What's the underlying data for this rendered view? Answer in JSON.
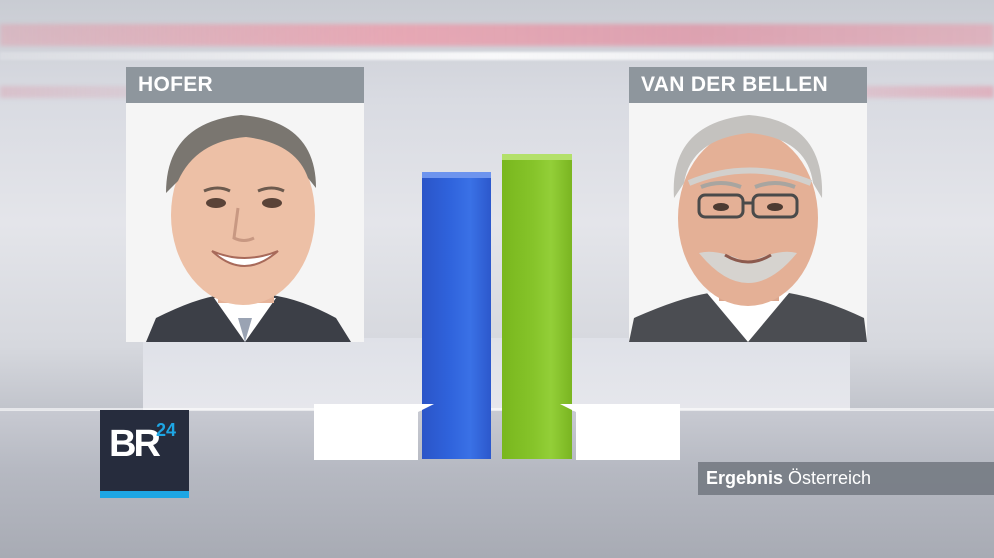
{
  "candidates": [
    {
      "name": "HOFER",
      "color": "#2f63dc",
      "vote_share": 0.485
    },
    {
      "name": "VAN DER BELLEN",
      "color": "#86c42a",
      "vote_share": 0.515
    }
  ],
  "logo": {
    "letters": "BR",
    "number": "24",
    "accent": "#1ea6e4"
  },
  "result": {
    "label": "Ergebnis",
    "region": "Österreich"
  }
}
